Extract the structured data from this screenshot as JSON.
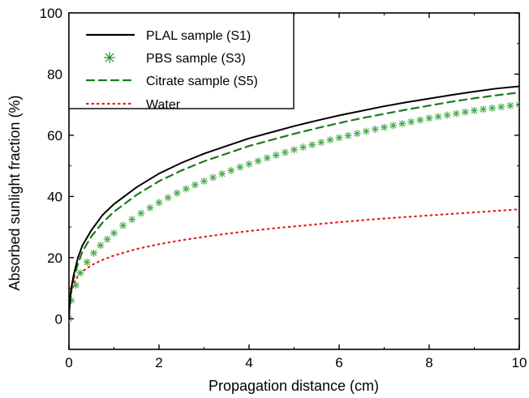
{
  "chart_data": {
    "type": "line",
    "title": "",
    "xlabel": "Propagation distance (cm)",
    "ylabel": "Absorbed sunlight fraction (%)",
    "xlim": [
      0,
      10
    ],
    "ylim": [
      -10,
      100
    ],
    "x_ticks": [
      0,
      2,
      4,
      6,
      8,
      10
    ],
    "y_ticks": [
      0,
      20,
      40,
      60,
      80,
      100
    ],
    "grid": false,
    "legend_position": "top-left",
    "series": [
      {
        "name": "PLAL sample  (S1)",
        "style": "solid",
        "marker": "none",
        "color": "#000000",
        "x": [
          0,
          0.02,
          0.05,
          0.1,
          0.2,
          0.3,
          0.5,
          0.75,
          1,
          1.5,
          2,
          2.5,
          3,
          3.5,
          4,
          4.5,
          5,
          5.5,
          6,
          6.5,
          7,
          7.5,
          8,
          8.5,
          9,
          9.5,
          10
        ],
        "y": [
          0,
          6,
          10,
          14,
          20,
          24,
          29,
          34,
          37.5,
          43,
          47.5,
          51,
          54,
          56.5,
          59,
          61,
          63,
          64.8,
          66.5,
          68,
          69.5,
          70.8,
          72,
          73.2,
          74.3,
          75.3,
          76
        ]
      },
      {
        "name": "PBS sample   (S3)",
        "style": "none",
        "marker": "star",
        "color": "#2a8a2a",
        "x": [
          0,
          0.05,
          0.15,
          0.25,
          0.4,
          0.55,
          0.7,
          0.85,
          1,
          1.2,
          1.4,
          1.6,
          1.8,
          2,
          2.2,
          2.4,
          2.6,
          2.8,
          3,
          3.2,
          3.4,
          3.6,
          3.8,
          4,
          4.2,
          4.4,
          4.6,
          4.8,
          5,
          5.2,
          5.4,
          5.6,
          5.8,
          6,
          6.2,
          6.4,
          6.6,
          6.8,
          7,
          7.2,
          7.4,
          7.6,
          7.8,
          8,
          8.2,
          8.4,
          8.6,
          8.8,
          9,
          9.2,
          9.4,
          9.6,
          9.8,
          10
        ],
        "y": [
          0,
          6,
          11,
          15,
          18.5,
          21.5,
          24,
          26,
          28,
          30.5,
          32.5,
          34.5,
          36.3,
          38,
          39.6,
          41.1,
          42.5,
          43.8,
          45,
          46.2,
          47.4,
          48.5,
          49.6,
          50.6,
          51.6,
          52.6,
          53.5,
          54.4,
          55.3,
          56.1,
          56.9,
          57.7,
          58.5,
          59.2,
          59.9,
          60.6,
          61.3,
          62,
          62.6,
          63.2,
          63.8,
          64.4,
          65,
          65.6,
          66.1,
          66.6,
          67.1,
          67.6,
          68.1,
          68.5,
          68.9,
          69.3,
          69.7,
          70
        ]
      },
      {
        "name": "Citrate sample  (S5)",
        "style": "dashed",
        "marker": "none",
        "color": "#1a7a1a",
        "x": [
          0,
          0.02,
          0.05,
          0.1,
          0.2,
          0.3,
          0.5,
          0.75,
          1,
          1.5,
          2,
          2.5,
          3,
          3.5,
          4,
          4.5,
          5,
          5.5,
          6,
          6.5,
          7,
          7.5,
          8,
          8.5,
          9,
          9.5,
          10
        ],
        "y": [
          0,
          5,
          9,
          13,
          18,
          22,
          27,
          31.5,
          35,
          40.5,
          45,
          48.5,
          51.5,
          54,
          56.5,
          58.5,
          60.5,
          62.3,
          64,
          65.6,
          67,
          68.4,
          69.7,
          71,
          72.1,
          73.1,
          74
        ]
      },
      {
        "name": "Water",
        "style": "dotted",
        "marker": "none",
        "color": "#e02020",
        "x": [
          0,
          0.02,
          0.05,
          0.1,
          0.2,
          0.3,
          0.5,
          0.75,
          1,
          1.5,
          2,
          2.5,
          3,
          3.5,
          4,
          4.5,
          5,
          5.5,
          6,
          6.5,
          7,
          7.5,
          8,
          8.5,
          9,
          9.5,
          10
        ],
        "y": [
          0,
          5,
          8.5,
          11.5,
          14,
          15.5,
          17.5,
          19.3,
          20.7,
          22.8,
          24.4,
          25.7,
          26.8,
          27.8,
          28.7,
          29.5,
          30.2,
          30.9,
          31.6,
          32.2,
          32.8,
          33.3,
          33.8,
          34.3,
          34.8,
          35.3,
          35.8
        ]
      }
    ]
  }
}
